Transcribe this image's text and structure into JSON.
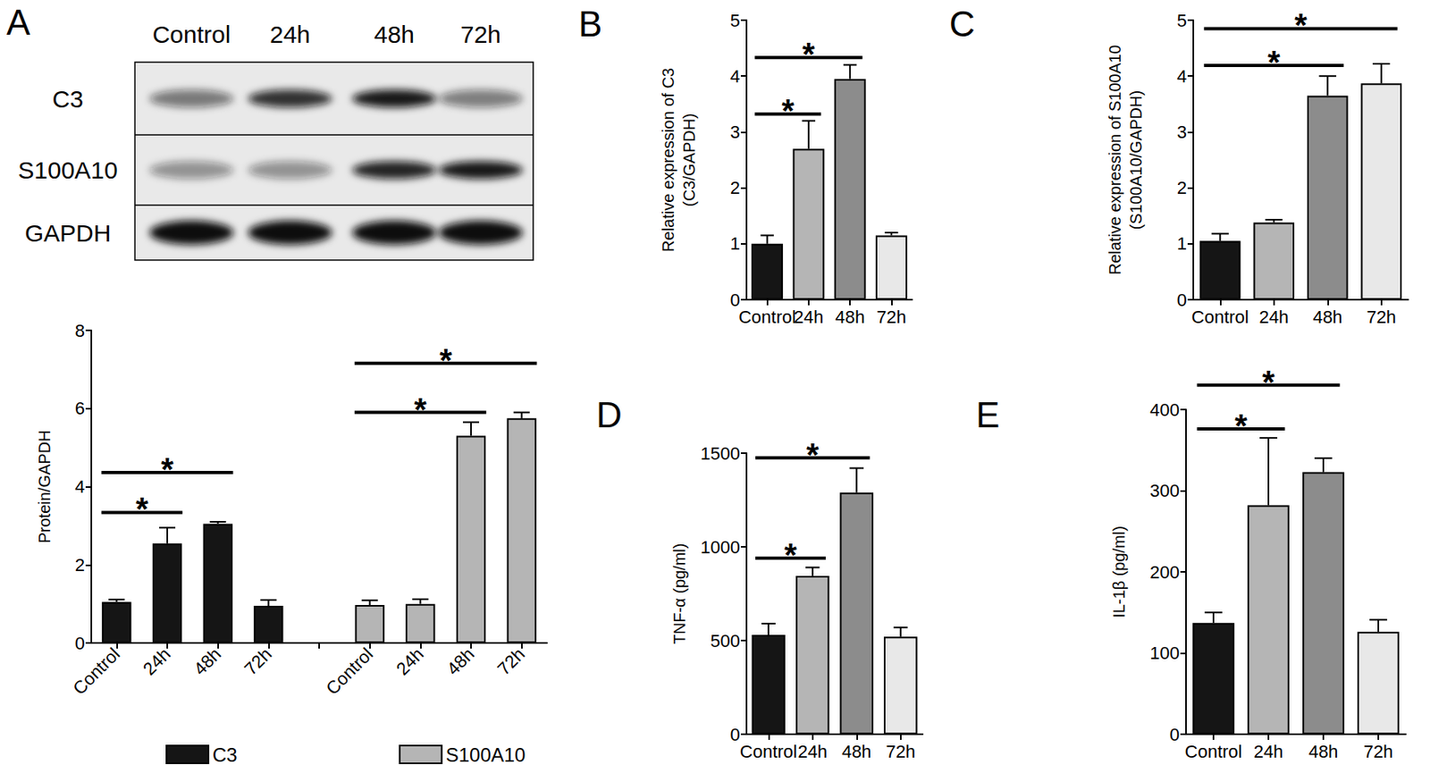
{
  "panel_labels": [
    "A",
    "B",
    "C",
    "D",
    "E"
  ],
  "blot": {
    "columns": [
      "Control",
      "24h",
      "48h",
      "72h"
    ],
    "rows": [
      "C3",
      "S100A10",
      "GAPDH"
    ]
  },
  "chart_data": [
    {
      "type": "bar",
      "categories": [
        "Control",
        "24h",
        "48h",
        "72h"
      ],
      "series": [
        {
          "name": "C3",
          "color": "#151515",
          "values": [
            1.05,
            2.55,
            3.05,
            0.95
          ],
          "errors": [
            0.06,
            0.4,
            0.05,
            0.15
          ]
        },
        {
          "name": "S100A10",
          "color": "#b5b5b5",
          "values": [
            0.97,
            1.0,
            5.3,
            5.75
          ],
          "errors": [
            0.12,
            0.12,
            0.35,
            0.15
          ]
        }
      ],
      "y_label": "Protein/GAPDH",
      "ylim": [
        0,
        8
      ],
      "yticks": [
        0,
        2,
        4,
        6,
        8
      ],
      "grid": false,
      "legend": "bottom",
      "annotations": [
        {
          "series": "C3",
          "from": "Control",
          "to": "24h",
          "y": 3.34,
          "text": "*"
        },
        {
          "series": "C3",
          "from": "Control",
          "to": "48h",
          "y": 4.36,
          "text": "*"
        },
        {
          "series": "S100A10",
          "from": "Control",
          "to": "48h",
          "y": 5.9,
          "text": "*"
        },
        {
          "series": "S100A10",
          "from": "Control",
          "to": "72h",
          "y": 7.16,
          "text": "*"
        }
      ]
    },
    {
      "type": "bar",
      "categories": [
        "Control",
        "24h",
        "48h",
        "72h"
      ],
      "values": [
        1.0,
        2.7,
        3.95,
        1.15
      ],
      "errors": [
        0.15,
        0.5,
        0.25,
        0.05
      ],
      "colors": [
        "#151515",
        "#b5b5b5",
        "#8c8c8c",
        "#e8e8e8"
      ],
      "y_label": "Relative expression of C3\n(C3/GAPDH)",
      "ylim": [
        0,
        5
      ],
      "yticks": [
        0,
        1,
        2,
        3,
        4,
        5
      ],
      "grid": false,
      "annotations": [
        {
          "from": "Control",
          "to": "24h",
          "y": 3.32,
          "text": "*"
        },
        {
          "from": "Control",
          "to": "48h",
          "y": 4.33,
          "text": "*"
        }
      ]
    },
    {
      "type": "bar",
      "categories": [
        "Control",
        "24h",
        "48h",
        "72h"
      ],
      "values": [
        1.05,
        1.38,
        3.65,
        3.87
      ],
      "errors": [
        0.13,
        0.05,
        0.35,
        0.35
      ],
      "colors": [
        "#151515",
        "#b5b5b5",
        "#8c8c8c",
        "#e8e8e8"
      ],
      "y_label": "Relative expression of S100A10\n(S100A10/GAPDH)",
      "ylim": [
        0,
        5
      ],
      "yticks": [
        0,
        1,
        2,
        3,
        4,
        5
      ],
      "grid": false,
      "annotations": [
        {
          "from": "Control",
          "to": "48h",
          "y": 4.19,
          "text": "*"
        },
        {
          "from": "Control",
          "to": "72h",
          "y": 4.85,
          "text": "*"
        }
      ]
    },
    {
      "type": "bar",
      "categories": [
        "Control",
        "24h",
        "48h",
        "72h"
      ],
      "values": [
        530,
        845,
        1290,
        520
      ],
      "errors": [
        60,
        45,
        130,
        50
      ],
      "colors": [
        "#151515",
        "#b5b5b5",
        "#8c8c8c",
        "#e8e8e8"
      ],
      "y_label": "TNF-α (pg/ml)",
      "ylim": [
        0,
        1500
      ],
      "yticks": [
        0,
        500,
        1000,
        1500
      ],
      "grid": false,
      "annotations": [
        {
          "from": "Control",
          "to": "24h",
          "y": 940,
          "text": "*"
        },
        {
          "from": "Control",
          "to": "48h",
          "y": 1475,
          "text": "*"
        }
      ]
    },
    {
      "type": "bar",
      "categories": [
        "Control",
        "24h",
        "48h",
        "72h"
      ],
      "values": [
        137,
        282,
        323,
        126
      ],
      "errors": [
        13,
        83,
        17,
        15
      ],
      "colors": [
        "#151515",
        "#b5b5b5",
        "#8c8c8c",
        "#e8e8e8"
      ],
      "y_label": "IL-1β (pg/ml)",
      "ylim": [
        0,
        400
      ],
      "yticks": [
        0,
        100,
        200,
        300,
        400
      ],
      "grid": false,
      "annotations": [
        {
          "from": "Control",
          "to": "24h",
          "y": 376,
          "text": "*"
        },
        {
          "from": "Control",
          "to": "48h",
          "y": 430,
          "text": "*"
        }
      ]
    }
  ]
}
